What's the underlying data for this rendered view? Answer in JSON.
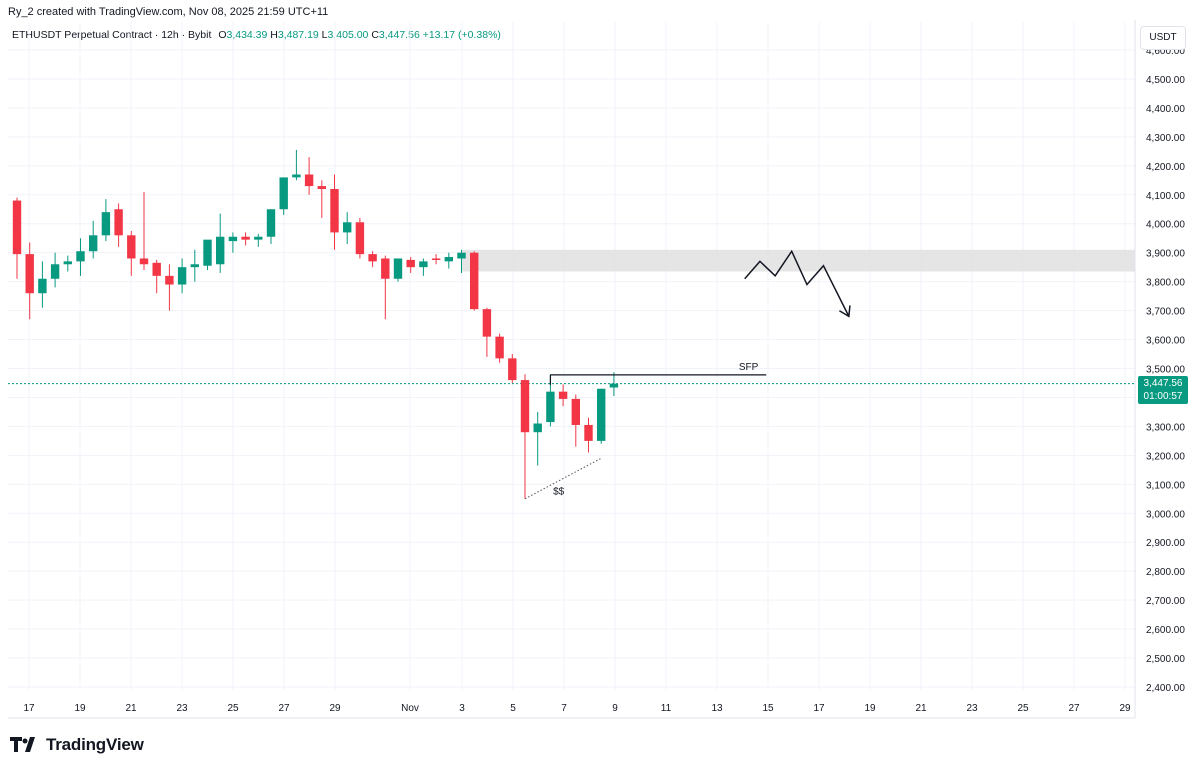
{
  "header": {
    "author_line": "Ry_2 created with TradingView.com, Nov 08, 2025 21:59 UTC+11"
  },
  "legend": {
    "symbol": "ETHUSDT Perpetual Contract · 12h · Bybit",
    "open_label": "O",
    "open": "3,434.39",
    "high_label": "H",
    "high": "3,487.19",
    "low_label": "L",
    "low": "3,405.00",
    "close_label": "C",
    "close": "3,447.56",
    "change": "+13.17 (+0.38%)"
  },
  "price_scale": {
    "currency": "USDT",
    "current_price": "3,447.56",
    "countdown": "01:00:57"
  },
  "footer": {
    "brand": "TradingView"
  },
  "colors": {
    "up": "#089981",
    "down": "#f23645",
    "grid": "#f0f3fa",
    "zone": "#e0e0e0",
    "price_line": "#089981"
  },
  "chart_data": {
    "type": "candlestick",
    "y_ticks": [
      "4,600.00",
      "4,500.00",
      "4,400.00",
      "4,300.00",
      "4,200.00",
      "4,100.00",
      "4,000.00",
      "3,900.00",
      "3,800.00",
      "3,700.00",
      "3,600.00",
      "3,500.00",
      "3,400.00",
      "3,300.00",
      "3,200.00",
      "3,100.00",
      "3,000.00",
      "2,900.00",
      "2,800.00",
      "2,700.00",
      "2,600.00",
      "2,500.00",
      "2,400.00"
    ],
    "x_ticks": [
      "17",
      "19",
      "21",
      "23",
      "25",
      "27",
      "29",
      "Nov",
      "3",
      "5",
      "7",
      "9",
      "11",
      "13",
      "15",
      "17",
      "19",
      "21",
      "23",
      "25",
      "27",
      "29"
    ],
    "ylim": [
      2400,
      4600
    ],
    "candles": [
      {
        "t": 0,
        "o": 4080,
        "h": 4090,
        "l": 3810,
        "c": 3895
      },
      {
        "t": 1,
        "o": 3895,
        "h": 3935,
        "l": 3670,
        "c": 3760
      },
      {
        "t": 2,
        "o": 3760,
        "h": 3870,
        "l": 3710,
        "c": 3810
      },
      {
        "t": 3,
        "o": 3810,
        "h": 3900,
        "l": 3780,
        "c": 3860
      },
      {
        "t": 4,
        "o": 3860,
        "h": 3890,
        "l": 3835,
        "c": 3870
      },
      {
        "t": 5,
        "o": 3870,
        "h": 3950,
        "l": 3820,
        "c": 3905
      },
      {
        "t": 6,
        "o": 3905,
        "h": 4010,
        "l": 3880,
        "c": 3960
      },
      {
        "t": 7,
        "o": 3960,
        "h": 4085,
        "l": 3940,
        "c": 4040
      },
      {
        "t": 8,
        "o": 4050,
        "h": 4070,
        "l": 3920,
        "c": 3960
      },
      {
        "t": 9,
        "o": 3960,
        "h": 3975,
        "l": 3820,
        "c": 3880
      },
      {
        "t": 10,
        "o": 3880,
        "h": 4110,
        "l": 3840,
        "c": 3860
      },
      {
        "t": 11,
        "o": 3865,
        "h": 3875,
        "l": 3760,
        "c": 3820
      },
      {
        "t": 12,
        "o": 3820,
        "h": 3860,
        "l": 3700,
        "c": 3790
      },
      {
        "t": 13,
        "o": 3790,
        "h": 3880,
        "l": 3760,
        "c": 3850
      },
      {
        "t": 14,
        "o": 3850,
        "h": 3910,
        "l": 3800,
        "c": 3860
      },
      {
        "t": 15,
        "o": 3855,
        "h": 3930,
        "l": 3840,
        "c": 3945
      },
      {
        "t": 16,
        "o": 3860,
        "h": 4035,
        "l": 3830,
        "c": 3955
      },
      {
        "t": 17,
        "o": 3940,
        "h": 3970,
        "l": 3900,
        "c": 3955
      },
      {
        "t": 18,
        "o": 3955,
        "h": 3970,
        "l": 3925,
        "c": 3945
      },
      {
        "t": 19,
        "o": 3945,
        "h": 3965,
        "l": 3920,
        "c": 3955
      },
      {
        "t": 20,
        "o": 3955,
        "h": 4050,
        "l": 3930,
        "c": 4050
      },
      {
        "t": 21,
        "o": 4050,
        "h": 4160,
        "l": 4030,
        "c": 4160
      },
      {
        "t": 22,
        "o": 4160,
        "h": 4255,
        "l": 4150,
        "c": 4170
      },
      {
        "t": 23,
        "o": 4170,
        "h": 4230,
        "l": 4100,
        "c": 4130
      },
      {
        "t": 24,
        "o": 4130,
        "h": 4150,
        "l": 4020,
        "c": 4120
      },
      {
        "t": 25,
        "o": 4120,
        "h": 4170,
        "l": 3910,
        "c": 3970
      },
      {
        "t": 26,
        "o": 3970,
        "h": 4040,
        "l": 3930,
        "c": 4005
      },
      {
        "t": 27,
        "o": 4005,
        "h": 4020,
        "l": 3880,
        "c": 3895
      },
      {
        "t": 28,
        "o": 3895,
        "h": 3905,
        "l": 3850,
        "c": 3870
      },
      {
        "t": 29,
        "o": 3880,
        "h": 3890,
        "l": 3670,
        "c": 3810
      },
      {
        "t": 30,
        "o": 3810,
        "h": 3880,
        "l": 3800,
        "c": 3880
      },
      {
        "t": 31,
        "o": 3875,
        "h": 3885,
        "l": 3830,
        "c": 3850
      },
      {
        "t": 32,
        "o": 3850,
        "h": 3880,
        "l": 3820,
        "c": 3870
      },
      {
        "t": 33,
        "o": 3880,
        "h": 3895,
        "l": 3860,
        "c": 3875
      },
      {
        "t": 34,
        "o": 3870,
        "h": 3900,
        "l": 3845,
        "c": 3885
      },
      {
        "t": 35,
        "o": 3880,
        "h": 3910,
        "l": 3830,
        "c": 3900
      },
      {
        "t": 36,
        "o": 3900,
        "h": 3905,
        "l": 3700,
        "c": 3705
      },
      {
        "t": 37,
        "o": 3705,
        "h": 3710,
        "l": 3540,
        "c": 3610
      },
      {
        "t": 38,
        "o": 3610,
        "h": 3620,
        "l": 3520,
        "c": 3535
      },
      {
        "t": 39,
        "o": 3535,
        "h": 3550,
        "l": 3450,
        "c": 3460
      },
      {
        "t": 40,
        "o": 3460,
        "h": 3480,
        "l": 3050,
        "c": 3280
      },
      {
        "t": 41,
        "o": 3280,
        "h": 3350,
        "l": 3165,
        "c": 3310
      },
      {
        "t": 42,
        "o": 3315,
        "h": 3480,
        "l": 3300,
        "c": 3420
      },
      {
        "t": 43,
        "o": 3420,
        "h": 3445,
        "l": 3370,
        "c": 3395
      },
      {
        "t": 44,
        "o": 3395,
        "h": 3410,
        "l": 3230,
        "c": 3305
      },
      {
        "t": 45,
        "o": 3305,
        "h": 3330,
        "l": 3210,
        "c": 3250
      },
      {
        "t": 46,
        "o": 3250,
        "h": 3430,
        "l": 3240,
        "c": 3430
      },
      {
        "t": 47,
        "o": 3434.39,
        "h": 3487.19,
        "l": 3405,
        "c": 3447.56
      }
    ],
    "annotations": [
      {
        "type": "zone",
        "x_start": 35,
        "x_end": 88,
        "y_low": 3835,
        "y_high": 3910
      },
      {
        "type": "level",
        "label": "SFP",
        "x_start": 42,
        "x_end": 59,
        "y": 3478
      },
      {
        "type": "dotted-line",
        "label": "$$",
        "from": [
          40,
          3050
        ],
        "to": [
          46,
          3190
        ]
      },
      {
        "type": "path-arrow",
        "points": [
          [
            57.3,
            3810
          ],
          [
            58.5,
            3870
          ],
          [
            59.7,
            3820
          ],
          [
            61,
            3905
          ],
          [
            62.2,
            3790
          ],
          [
            63.5,
            3855
          ],
          [
            65.5,
            3680
          ]
        ]
      }
    ]
  }
}
